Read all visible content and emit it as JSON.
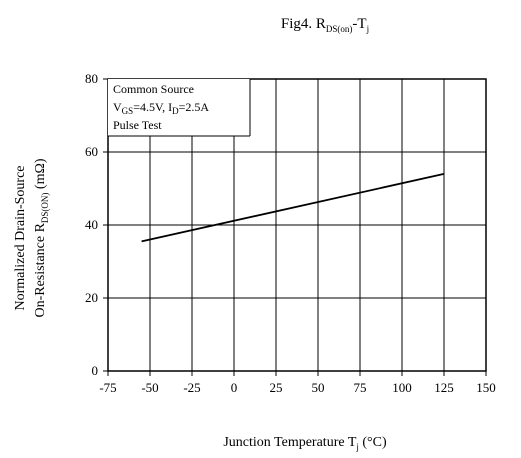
{
  "chart_data": {
    "type": "line",
    "title": {
      "main": "Fig4. R",
      "sub": "DS(on)",
      "rest": "-T",
      "sub2": "j"
    },
    "xlabel": {
      "main": "Junction Temperature  T",
      "sub": "j",
      "unit": " (°C)"
    },
    "ylabel": {
      "line1": "Normalized Drain-Source",
      "line2_main": "On-Resistance  R",
      "line2_sub": "DS(ON)",
      "line2_unit": " (mΩ)"
    },
    "xlim": [
      -75,
      150
    ],
    "ylim": [
      0,
      80
    ],
    "x_ticks": [
      "-75",
      "-50",
      "-25",
      "0",
      "25",
      "50",
      "75",
      "100",
      "125",
      "150"
    ],
    "y_ticks": [
      "0",
      "20",
      "40",
      "60",
      "80"
    ],
    "grid": true,
    "series": [
      {
        "x": [
          -55,
          125
        ],
        "y": [
          35.5,
          54
        ]
      }
    ],
    "annotation": {
      "line1": "Common Source",
      "line2": {
        "vgs_main": "V",
        "vgs_sub": "GS",
        "vgs_val": "=4.5V, I",
        "id_sub": "D",
        "id_val": "=2.5A"
      },
      "line3": "Pulse Test"
    },
    "colors": {
      "line": "#000000",
      "grid": "#000000",
      "frame": "#000000"
    }
  }
}
